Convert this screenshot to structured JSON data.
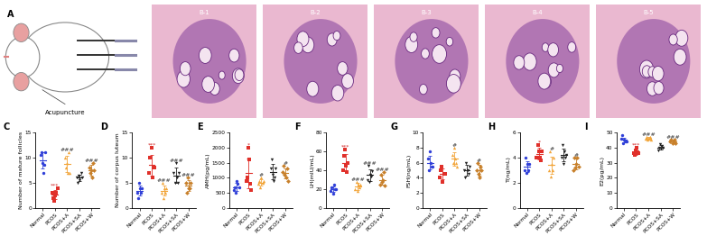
{
  "panel_A": {
    "label": "A",
    "caption": "Acupuncture"
  },
  "panel_B": {
    "labels": [
      "B-1",
      "B-2",
      "B-3",
      "B-4",
      "B-5"
    ]
  },
  "chart_data": [
    {
      "type": "scatter",
      "title": "C",
      "y_label": "Number of mature follicles",
      "categories": [
        "Normal",
        "PCOS",
        "PCOS+A",
        "PCOS+SA",
        "PCOS+W"
      ],
      "colors": [
        "#2f3fd8",
        "#e0302a",
        "#f2a53a",
        "#222222",
        "#c8802a"
      ],
      "values": [
        9.5,
        2.7,
        8.7,
        6.0,
        7.5
      ],
      "errors": [
        1.6,
        0.9,
        1.6,
        0.7,
        1.0
      ],
      "points": [
        [
          10.5,
          11,
          9,
          7,
          8.5,
          11
        ],
        [
          3,
          2,
          1.5,
          2.5,
          3,
          4
        ],
        [
          10,
          8,
          9,
          7,
          11,
          7
        ],
        [
          6,
          5,
          6.5,
          5.5,
          7,
          6
        ],
        [
          8,
          7,
          7.5,
          6,
          9,
          7.5
        ]
      ],
      "annotations": [
        null,
        "***",
        "###",
        null,
        "###"
      ],
      "ylim": [
        0,
        15
      ],
      "yticks": [
        0,
        5,
        10,
        15
      ]
    },
    {
      "type": "scatter",
      "title": "D",
      "y_label": "Number of corpus luteum",
      "categories": [
        "Normal",
        "PCOS",
        "PCOS+A",
        "PCOS+SA",
        "PCOS+W"
      ],
      "colors": [
        "#2f3fd8",
        "#e0302a",
        "#f2a53a",
        "#222222",
        "#c8802a"
      ],
      "values": [
        3.5,
        8.5,
        3.5,
        6.5,
        4.5
      ],
      "errors": [
        1.0,
        2.0,
        1.0,
        1.5,
        1.0
      ],
      "points": [
        [
          3,
          2,
          5,
          4,
          3,
          4
        ],
        [
          7,
          10,
          12,
          6,
          8,
          8
        ],
        [
          3,
          5,
          2,
          4,
          3,
          4
        ],
        [
          7,
          5,
          9,
          6,
          5,
          7
        ],
        [
          5,
          3,
          6,
          4,
          4,
          5
        ]
      ],
      "annotations": [
        null,
        "***",
        "###",
        "###",
        "###"
      ],
      "ylim": [
        0,
        15
      ],
      "yticks": [
        0,
        5,
        10,
        15
      ]
    },
    {
      "type": "scatter",
      "title": "E",
      "y_label": "AMH(pg/mL)",
      "categories": [
        "Normal",
        "PCOS",
        "PCOS+A",
        "PCOS+SA",
        "PCOS+W"
      ],
      "colors": [
        "#2f3fd8",
        "#e0302a",
        "#f2a53a",
        "#222222",
        "#c8802a"
      ],
      "values": [
        700,
        1150,
        850,
        1200,
        1150
      ],
      "errors": [
        130,
        500,
        100,
        250,
        170
      ],
      "points": [
        [
          600,
          700,
          500,
          900,
          800,
          700
        ],
        [
          900,
          1000,
          2000,
          1600,
          800,
          600
        ],
        [
          800,
          900,
          700,
          1000,
          850,
          900
        ],
        [
          1300,
          1600,
          1100,
          900,
          1000,
          1300
        ],
        [
          1200,
          1400,
          1100,
          1000,
          1300,
          900
        ]
      ],
      "annotations": [
        null,
        "*",
        "#",
        null,
        "#"
      ],
      "ylim": [
        0,
        2500
      ],
      "yticks": [
        0,
        500,
        1000,
        1500,
        2000,
        2500
      ]
    },
    {
      "type": "scatter",
      "title": "F",
      "y_label": "LH(mIU/mL)",
      "categories": [
        "Normal",
        "PCOS",
        "PCOS+A",
        "PCOS+SA",
        "PCOS+W"
      ],
      "colors": [
        "#2f3fd8",
        "#e0302a",
        "#f2a53a",
        "#222222",
        "#c8802a"
      ],
      "values": [
        20,
        48,
        23,
        35,
        30
      ],
      "errors": [
        3,
        9,
        4,
        6,
        5
      ],
      "points": [
        [
          18,
          22,
          15,
          25,
          20,
          20
        ],
        [
          40,
          55,
          62,
          45,
          38,
          48
        ],
        [
          20,
          28,
          18,
          25,
          22,
          25
        ],
        [
          30,
          45,
          28,
          35,
          33,
          39
        ],
        [
          25,
          35,
          28,
          30,
          38,
          24
        ]
      ],
      "annotations": [
        null,
        "***",
        "###",
        "###",
        "###"
      ],
      "ylim": [
        0,
        80
      ],
      "yticks": [
        0,
        20,
        40,
        60,
        80
      ]
    },
    {
      "type": "scatter",
      "title": "G",
      "y_label": "FSH(ng/mL)",
      "categories": [
        "Normal",
        "PCOS",
        "PCOS+A",
        "PCOS+SA",
        "PCOS+W"
      ],
      "colors": [
        "#2f3fd8",
        "#e0302a",
        "#f2a53a",
        "#222222",
        "#c8802a"
      ],
      "values": [
        6.0,
        4.5,
        6.5,
        5.0,
        5.0
      ],
      "errors": [
        0.9,
        0.7,
        0.9,
        0.7,
        0.7
      ],
      "points": [
        [
          6.5,
          5,
          7.5,
          6,
          5.5,
          5.5
        ],
        [
          4,
          5,
          5.5,
          3.5,
          4.5,
          4.5
        ],
        [
          7,
          6,
          8,
          6.5,
          6,
          5.5
        ],
        [
          5,
          4,
          6,
          5,
          4.5,
          5.5
        ],
        [
          5,
          6,
          4.5,
          4,
          5.5,
          5
        ]
      ],
      "annotations": [
        null,
        null,
        "#",
        null,
        "#"
      ],
      "ylim": [
        0,
        10
      ],
      "yticks": [
        0,
        2,
        4,
        6,
        8,
        10
      ]
    },
    {
      "type": "scatter",
      "title": "H",
      "y_label": "T(ng/mL)",
      "categories": [
        "Normal",
        "PCOS",
        "PCOS+A",
        "PCOS+SA",
        "PCOS+W"
      ],
      "colors": [
        "#2f3fd8",
        "#e0302a",
        "#f2a53a",
        "#222222",
        "#c8802a"
      ],
      "values": [
        3.3,
        4.3,
        3.4,
        4.2,
        3.5
      ],
      "errors": [
        0.45,
        0.45,
        0.7,
        0.5,
        0.4
      ],
      "points": [
        [
          3,
          4,
          2.8,
          3.5,
          3,
          3.5
        ],
        [
          4,
          5,
          4.5,
          4,
          3.8,
          4.5
        ],
        [
          3,
          4.5,
          2.5,
          3.5,
          3,
          4
        ],
        [
          4,
          5,
          3.5,
          4.5,
          4,
          4.2
        ],
        [
          3,
          4,
          3.2,
          3.5,
          4,
          3.3
        ]
      ],
      "annotations": [
        null,
        "*",
        "#",
        null,
        "#"
      ],
      "ylim": [
        0,
        6
      ],
      "yticks": [
        0,
        2,
        4,
        6
      ]
    },
    {
      "type": "scatter",
      "title": "I",
      "y_label": "E2(pg/mL)",
      "categories": [
        "Normal",
        "PCOS",
        "PCOS+A",
        "PCOS+SA",
        "PCOS+W"
      ],
      "colors": [
        "#2f3fd8",
        "#e0302a",
        "#f2a53a",
        "#222222",
        "#c8802a"
      ],
      "values": [
        45,
        37,
        46,
        40,
        44
      ],
      "errors": [
        1.6,
        1.8,
        0.8,
        1.4,
        0.9
      ],
      "points": [
        [
          46,
          48,
          43,
          45,
          44,
          44
        ],
        [
          36,
          35,
          38,
          40,
          37,
          36
        ],
        [
          46,
          47,
          45,
          46,
          47,
          45
        ],
        [
          38,
          40,
          42,
          39,
          41,
          40
        ],
        [
          44,
          45,
          43,
          44,
          45,
          43
        ]
      ],
      "annotations": [
        null,
        "***",
        "###",
        null,
        "###"
      ],
      "ylim": [
        0,
        50
      ],
      "yticks": [
        0,
        10,
        20,
        30,
        40,
        50
      ]
    }
  ]
}
